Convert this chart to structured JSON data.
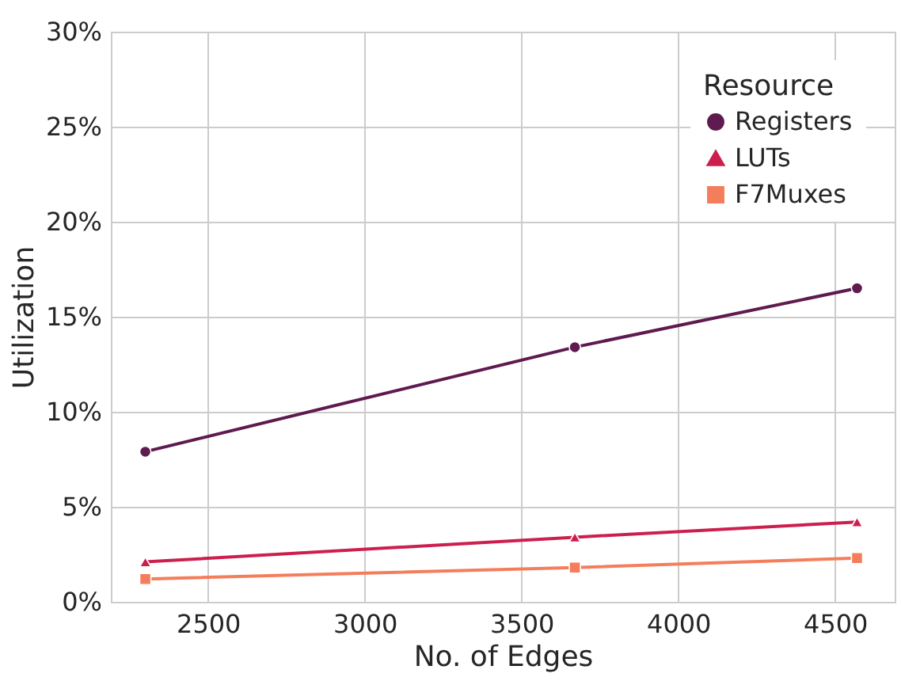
{
  "chart_data": {
    "type": "line",
    "xlabel": "No. of Edges",
    "ylabel": "Utilization",
    "legend_title": "Resource",
    "x": [
      2300,
      3670,
      4570
    ],
    "series": [
      {
        "name": "Registers",
        "color": "#5f1a4f",
        "marker": "circle",
        "values": [
          7.9,
          13.4,
          16.5
        ]
      },
      {
        "name": "LUTs",
        "color": "#cc1f4e",
        "marker": "triangle",
        "values": [
          2.1,
          3.4,
          4.2
        ]
      },
      {
        "name": "F7Muxes",
        "color": "#f47e5c",
        "marker": "square",
        "values": [
          1.2,
          1.8,
          2.3
        ]
      }
    ],
    "xlim": [
      2190,
      4690
    ],
    "xticks": [
      2500,
      3000,
      3500,
      4000,
      4500
    ],
    "ylim": [
      0,
      30
    ],
    "yticks": [
      {
        "value": 0,
        "label": "0%"
      },
      {
        "value": 5,
        "label": "5%"
      },
      {
        "value": 10,
        "label": "10%"
      },
      {
        "value": 15,
        "label": "15%"
      },
      {
        "value": 20,
        "label": "20%"
      },
      {
        "value": 25,
        "label": "25%"
      },
      {
        "value": 30,
        "label": "30%"
      }
    ],
    "grid": true,
    "legend": "top right",
    "line_style": "solid"
  }
}
